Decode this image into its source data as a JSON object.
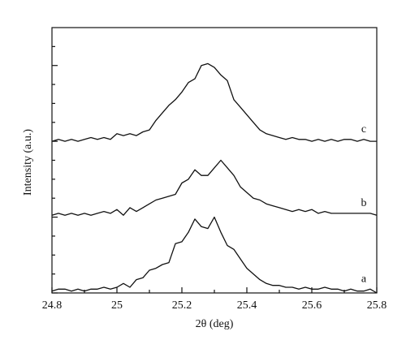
{
  "chart_data": {
    "type": "line",
    "title": "",
    "xlabel": "2θ (deg)",
    "ylabel": "Intensity (a.u.)",
    "xlim": [
      24.8,
      25.8
    ],
    "ylim": [
      0,
      1.4
    ],
    "x_ticks": [
      "24.8",
      "25",
      "25.2",
      "25.4",
      "25.6",
      "25.8"
    ],
    "grid": false,
    "legend": "none",
    "series_line_color": "#111111",
    "series": [
      {
        "name": "a",
        "x": [
          24.8,
          24.82,
          24.84,
          24.86,
          24.88,
          24.9,
          24.92,
          24.94,
          24.96,
          24.98,
          25.0,
          25.02,
          25.04,
          25.06,
          25.08,
          25.1,
          25.12,
          25.14,
          25.16,
          25.18,
          25.2,
          25.22,
          25.24,
          25.26,
          25.28,
          25.3,
          25.32,
          25.34,
          25.36,
          25.38,
          25.4,
          25.42,
          25.44,
          25.46,
          25.48,
          25.5,
          25.52,
          25.54,
          25.56,
          25.58,
          25.6,
          25.62,
          25.64,
          25.66,
          25.68,
          25.7,
          25.72,
          25.74,
          25.76,
          25.78,
          25.8
        ],
        "y": [
          0.01,
          0.02,
          0.02,
          0.01,
          0.02,
          0.01,
          0.02,
          0.02,
          0.03,
          0.02,
          0.03,
          0.05,
          0.03,
          0.07,
          0.08,
          0.12,
          0.13,
          0.15,
          0.16,
          0.26,
          0.27,
          0.32,
          0.39,
          0.35,
          0.34,
          0.4,
          0.32,
          0.25,
          0.23,
          0.18,
          0.13,
          0.1,
          0.07,
          0.05,
          0.04,
          0.04,
          0.03,
          0.03,
          0.02,
          0.03,
          0.02,
          0.02,
          0.03,
          0.02,
          0.02,
          0.01,
          0.02,
          0.01,
          0.01,
          0.02,
          0.0
        ]
      },
      {
        "name": "b",
        "x": [
          24.8,
          24.82,
          24.84,
          24.86,
          24.88,
          24.9,
          24.92,
          24.94,
          24.96,
          24.98,
          25.0,
          25.02,
          25.04,
          25.06,
          25.08,
          25.1,
          25.12,
          25.14,
          25.16,
          25.18,
          25.2,
          25.22,
          25.24,
          25.26,
          25.28,
          25.3,
          25.32,
          25.34,
          25.36,
          25.38,
          25.4,
          25.42,
          25.44,
          25.46,
          25.48,
          25.5,
          25.52,
          25.54,
          25.56,
          25.58,
          25.6,
          25.62,
          25.64,
          25.66,
          25.68,
          25.7,
          25.72,
          25.74,
          25.76,
          25.78,
          25.8
        ],
        "y": [
          0.41,
          0.42,
          0.41,
          0.42,
          0.41,
          0.42,
          0.41,
          0.42,
          0.43,
          0.42,
          0.44,
          0.41,
          0.45,
          0.43,
          0.45,
          0.47,
          0.49,
          0.5,
          0.51,
          0.52,
          0.58,
          0.6,
          0.65,
          0.62,
          0.62,
          0.66,
          0.7,
          0.66,
          0.62,
          0.56,
          0.53,
          0.5,
          0.49,
          0.47,
          0.46,
          0.45,
          0.44,
          0.43,
          0.44,
          0.43,
          0.44,
          0.42,
          0.43,
          0.42,
          0.42,
          0.42,
          0.42,
          0.42,
          0.42,
          0.42,
          0.41
        ]
      },
      {
        "name": "c",
        "x": [
          24.8,
          24.82,
          24.84,
          24.86,
          24.88,
          24.9,
          24.92,
          24.94,
          24.96,
          24.98,
          25.0,
          25.02,
          25.04,
          25.06,
          25.08,
          25.1,
          25.12,
          25.14,
          25.16,
          25.18,
          25.2,
          25.22,
          25.24,
          25.26,
          25.28,
          25.3,
          25.32,
          25.34,
          25.36,
          25.38,
          25.4,
          25.42,
          25.44,
          25.46,
          25.48,
          25.5,
          25.52,
          25.54,
          25.56,
          25.58,
          25.6,
          25.62,
          25.64,
          25.66,
          25.68,
          25.7,
          25.72,
          25.74,
          25.76,
          25.78,
          25.8
        ],
        "y": [
          0.8,
          0.81,
          0.8,
          0.81,
          0.8,
          0.81,
          0.82,
          0.81,
          0.82,
          0.81,
          0.84,
          0.83,
          0.84,
          0.83,
          0.85,
          0.86,
          0.91,
          0.95,
          0.99,
          1.02,
          1.06,
          1.11,
          1.13,
          1.2,
          1.21,
          1.19,
          1.15,
          1.12,
          1.02,
          0.98,
          0.94,
          0.9,
          0.86,
          0.84,
          0.83,
          0.82,
          0.81,
          0.82,
          0.81,
          0.81,
          0.8,
          0.81,
          0.8,
          0.81,
          0.8,
          0.81,
          0.81,
          0.8,
          0.81,
          0.8,
          0.8
        ]
      }
    ]
  }
}
